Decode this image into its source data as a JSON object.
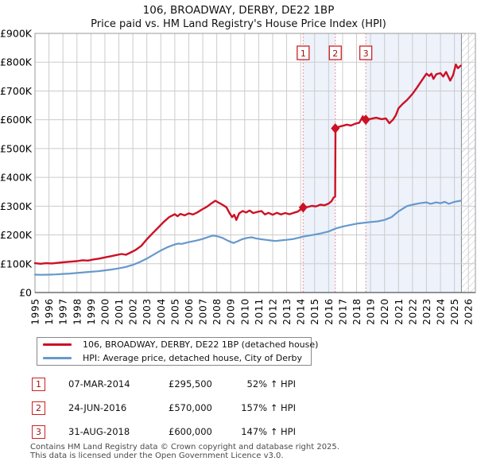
{
  "title": {
    "line1": "106, BROADWAY, DERBY, DE22 1BP",
    "line2": "Price paid vs. HM Land Registry's House Price Index (HPI)"
  },
  "legend": {
    "series1": "106, BROADWAY, DERBY, DE22 1BP (detached house)",
    "series2": "HPI: Average price, detached house, City of Derby"
  },
  "transactions": [
    {
      "num": "1",
      "date": "07-MAR-2014",
      "price": "£295,500",
      "hpi": "52% ↑ HPI",
      "year": 2014.18,
      "price_k": 295.5
    },
    {
      "num": "2",
      "date": "24-JUN-2016",
      "price": "£570,000",
      "hpi": "157% ↑ HPI",
      "year": 2016.48,
      "price_k": 570
    },
    {
      "num": "3",
      "date": "31-AUG-2018",
      "price": "£600,000",
      "hpi": "147% ↑ HPI",
      "year": 2018.66,
      "price_k": 600
    }
  ],
  "footer": {
    "line1": "Contains HM Land Registry data © Crown copyright and database right 2025.",
    "line2": "This data is licensed under the Open Government Licence v3.0."
  },
  "colors": {
    "property": "#cc1124",
    "hpi": "#6699cc",
    "band": "#edf2fb",
    "dotted": "#ef8585",
    "grid": "#cccccc",
    "frame": "#999999",
    "hatch_line": "#b9bdc9",
    "marker_box_border": "#cc2222",
    "marker_text": "#991111"
  },
  "chart_data": {
    "type": "line",
    "title": "106, BROADWAY, DERBY, DE22 1BP",
    "subtitle": "Price paid vs. HM Land Registry's House Price Index (HPI)",
    "x_domain": [
      1995,
      2026.5
    ],
    "ylim": [
      0,
      900
    ],
    "grid": true,
    "legend_position": "below",
    "x_ticks": [
      1995,
      1996,
      1997,
      1998,
      1999,
      2000,
      2001,
      2002,
      2003,
      2004,
      2005,
      2006,
      2007,
      2008,
      2009,
      2010,
      2011,
      2012,
      2013,
      2014,
      2015,
      2016,
      2017,
      2018,
      2019,
      2020,
      2021,
      2022,
      2023,
      2024,
      2025,
      2026
    ],
    "y_ticks": [
      {
        "v": 0,
        "label": "£0"
      },
      {
        "v": 100,
        "label": "£100K"
      },
      {
        "v": 200,
        "label": "£200K"
      },
      {
        "v": 300,
        "label": "£300K"
      },
      {
        "v": 400,
        "label": "£400K"
      },
      {
        "v": 500,
        "label": "£500K"
      },
      {
        "v": 600,
        "label": "£600K"
      },
      {
        "v": 700,
        "label": "£700K"
      },
      {
        "v": 800,
        "label": "£800K"
      },
      {
        "v": 900,
        "label": "£900K"
      }
    ],
    "hatch_start_year": 2025.5,
    "bands": [
      {
        "from": 2014.18,
        "to": 2016.48
      },
      {
        "from": 2018.66,
        "to": 2025.5
      }
    ],
    "series": [
      {
        "name": "HPI: Average price, detached house, City of Derby",
        "color_key": "hpi",
        "width": 2.2,
        "points": [
          [
            1995,
            62
          ],
          [
            1995.5,
            61.5
          ],
          [
            1996,
            62
          ],
          [
            1996.5,
            63
          ],
          [
            1997,
            64.5
          ],
          [
            1997.5,
            66
          ],
          [
            1998,
            68
          ],
          [
            1998.5,
            70
          ],
          [
            1999,
            72
          ],
          [
            1999.5,
            74
          ],
          [
            2000,
            77
          ],
          [
            2000.5,
            80
          ],
          [
            2001,
            84
          ],
          [
            2001.5,
            89
          ],
          [
            2002,
            96
          ],
          [
            2002.5,
            106
          ],
          [
            2003,
            118
          ],
          [
            2003.5,
            132
          ],
          [
            2004,
            146
          ],
          [
            2004.5,
            158
          ],
          [
            2005,
            167
          ],
          [
            2005.25,
            170
          ],
          [
            2005.5,
            169
          ],
          [
            2006,
            175
          ],
          [
            2006.5,
            180
          ],
          [
            2007,
            186
          ],
          [
            2007.4,
            193
          ],
          [
            2007.75,
            198
          ],
          [
            2008,
            196
          ],
          [
            2008.4,
            190
          ],
          [
            2008.8,
            180
          ],
          [
            2009.2,
            172
          ],
          [
            2009.5,
            178
          ],
          [
            2009.8,
            185
          ],
          [
            2010.2,
            190
          ],
          [
            2010.5,
            192
          ],
          [
            2010.8,
            188
          ],
          [
            2011.2,
            185
          ],
          [
            2011.5,
            183
          ],
          [
            2011.8,
            181
          ],
          [
            2012.2,
            179
          ],
          [
            2012.6,
            181
          ],
          [
            2013,
            183
          ],
          [
            2013.5,
            186
          ],
          [
            2014.18,
            194
          ],
          [
            2014.6,
            198
          ],
          [
            2015,
            201
          ],
          [
            2015.5,
            206
          ],
          [
            2016,
            212
          ],
          [
            2016.48,
            222
          ],
          [
            2017,
            229
          ],
          [
            2017.5,
            234
          ],
          [
            2018,
            239
          ],
          [
            2018.66,
            243
          ],
          [
            2019,
            245
          ],
          [
            2019.5,
            247
          ],
          [
            2020,
            252
          ],
          [
            2020.5,
            262
          ],
          [
            2021,
            282
          ],
          [
            2021.6,
            300
          ],
          [
            2022,
            305
          ],
          [
            2022.5,
            310
          ],
          [
            2023,
            313
          ],
          [
            2023.3,
            308
          ],
          [
            2023.7,
            313
          ],
          [
            2024,
            310
          ],
          [
            2024.3,
            315
          ],
          [
            2024.6,
            308
          ],
          [
            2025,
            315
          ],
          [
            2025.45,
            319
          ]
        ]
      },
      {
        "name": "106, BROADWAY, DERBY, DE22 1BP (detached house)",
        "color_key": "property",
        "width": 2.4,
        "points": [
          [
            1995,
            102
          ],
          [
            1995.4,
            100
          ],
          [
            1995.8,
            102
          ],
          [
            1996.2,
            101
          ],
          [
            1996.6,
            103
          ],
          [
            1997,
            105
          ],
          [
            1997.5,
            107
          ],
          [
            1998,
            109
          ],
          [
            1998.4,
            112
          ],
          [
            1998.8,
            111
          ],
          [
            1999.2,
            115
          ],
          [
            1999.6,
            118
          ],
          [
            2000,
            122
          ],
          [
            2000.4,
            126
          ],
          [
            2000.8,
            130
          ],
          [
            2001.2,
            134
          ],
          [
            2001.5,
            131
          ],
          [
            2001.8,
            138
          ],
          [
            2002.2,
            148
          ],
          [
            2002.6,
            162
          ],
          [
            2003,
            185
          ],
          [
            2003.4,
            205
          ],
          [
            2003.8,
            225
          ],
          [
            2004.2,
            245
          ],
          [
            2004.6,
            262
          ],
          [
            2005,
            272
          ],
          [
            2005.2,
            265
          ],
          [
            2005.4,
            273
          ],
          [
            2005.7,
            268
          ],
          [
            2006,
            275
          ],
          [
            2006.3,
            271
          ],
          [
            2006.6,
            278
          ],
          [
            2007,
            290
          ],
          [
            2007.3,
            298
          ],
          [
            2007.6,
            309
          ],
          [
            2007.9,
            319
          ],
          [
            2008.1,
            313
          ],
          [
            2008.4,
            305
          ],
          [
            2008.7,
            296
          ],
          [
            2008.9,
            277
          ],
          [
            2009.1,
            262
          ],
          [
            2009.25,
            270
          ],
          [
            2009.4,
            252
          ],
          [
            2009.6,
            275
          ],
          [
            2009.85,
            283
          ],
          [
            2010.1,
            278
          ],
          [
            2010.35,
            285
          ],
          [
            2010.6,
            276
          ],
          [
            2010.9,
            280
          ],
          [
            2011.2,
            283
          ],
          [
            2011.45,
            271
          ],
          [
            2011.7,
            277
          ],
          [
            2012,
            270
          ],
          [
            2012.3,
            277
          ],
          [
            2012.6,
            271
          ],
          [
            2012.9,
            276
          ],
          [
            2013.2,
            272
          ],
          [
            2013.5,
            277
          ],
          [
            2013.8,
            281
          ],
          [
            2014.18,
            295.5
          ],
          [
            2014.5,
            297
          ],
          [
            2014.8,
            301
          ],
          [
            2015.1,
            299
          ],
          [
            2015.4,
            305
          ],
          [
            2015.7,
            303
          ],
          [
            2016,
            309
          ],
          [
            2016.2,
            317
          ],
          [
            2016.35,
            329
          ],
          [
            2016.47,
            333
          ],
          [
            2016.49,
            570
          ],
          [
            2016.7,
            575
          ],
          [
            2017,
            579
          ],
          [
            2017.3,
            583
          ],
          [
            2017.6,
            580
          ],
          [
            2017.9,
            586
          ],
          [
            2018.2,
            590
          ],
          [
            2018.45,
            612
          ],
          [
            2018.55,
            596
          ],
          [
            2018.66,
            600
          ],
          [
            2019,
            603
          ],
          [
            2019.4,
            607
          ],
          [
            2019.8,
            602
          ],
          [
            2020.1,
            605
          ],
          [
            2020.35,
            588
          ],
          [
            2020.6,
            600
          ],
          [
            2020.8,
            615
          ],
          [
            2021,
            640
          ],
          [
            2021.3,
            655
          ],
          [
            2021.6,
            668
          ],
          [
            2022,
            690
          ],
          [
            2022.3,
            710
          ],
          [
            2022.6,
            732
          ],
          [
            2023,
            760
          ],
          [
            2023.2,
            752
          ],
          [
            2023.35,
            760
          ],
          [
            2023.5,
            742
          ],
          [
            2023.7,
            758
          ],
          [
            2024,
            762
          ],
          [
            2024.2,
            750
          ],
          [
            2024.4,
            766
          ],
          [
            2024.7,
            736
          ],
          [
            2024.9,
            755
          ],
          [
            2025.1,
            792
          ],
          [
            2025.25,
            779
          ],
          [
            2025.45,
            788
          ]
        ]
      }
    ]
  }
}
